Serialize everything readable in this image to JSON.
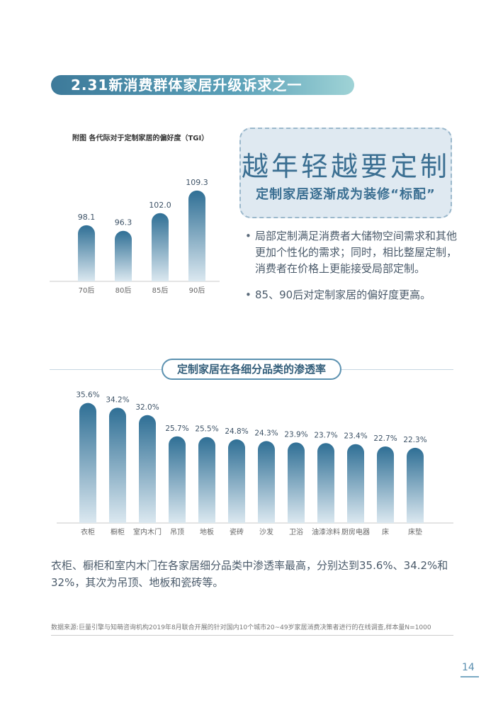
{
  "header": {
    "title": "2.31新消费群体家居升级诉求之一"
  },
  "chart1": {
    "title": "附图 各代际对于定制家居的偏好度（TGI）"
  },
  "callout": {
    "main": "越年轻越要定制",
    "sub": "定制家居逐渐成为装修“标配”"
  },
  "bullets": [
    "局部定制满足消费者大储物空间需求和其他更加个性化的需求；同时，相比整屋定制，消费者在价格上更能接受局部定制。",
    "85、90后对定制家居的偏好度更高。"
  ],
  "chart2": {
    "title": "定制家居在各细分品类的渗透率"
  },
  "summary": "衣柜、橱柜和室内木门在各家居细分品类中渗透率最高，分别达到35.6%、34.2%和32%，其次为吊顶、地板和瓷砖等。",
  "source": "数据来源:巨量引擎与知萌咨询机构2019年8月联合开展的针对国内10个城市20~49岁家居消费决策者进行的在线调查,样本量N=1000",
  "page_number": "14",
  "colors": {
    "bar_top": "#2f6f95",
    "bar_bottom": "#dbe8f0",
    "accent": "#3b6f92"
  },
  "chart_data": [
    {
      "type": "bar",
      "categories": [
        "70后",
        "80后",
        "85后",
        "90后"
      ],
      "values": [
        98.1,
        96.3,
        102.0,
        109.3
      ],
      "value_labels": [
        "98.1",
        "96.3",
        "102.0",
        "109.3"
      ],
      "ylim": [
        80,
        112
      ]
    },
    {
      "type": "bar",
      "categories": [
        "衣柜",
        "橱柜",
        "室内木门",
        "吊顶",
        "地板",
        "瓷砖",
        "沙发",
        "卫浴",
        "油漆涂料",
        "厨房电器",
        "床",
        "床垫"
      ],
      "values": [
        35.6,
        34.2,
        32.0,
        25.7,
        25.5,
        24.8,
        24.3,
        23.9,
        23.7,
        23.4,
        22.7,
        22.3
      ],
      "value_labels": [
        "35.6%",
        "34.2%",
        "32.0%",
        "25.7%",
        "25.5%",
        "24.8%",
        "24.3%",
        "23.9%",
        "23.7%",
        "23.4%",
        "22.7%",
        "22.3%"
      ],
      "ylim": [
        0,
        37
      ]
    }
  ]
}
